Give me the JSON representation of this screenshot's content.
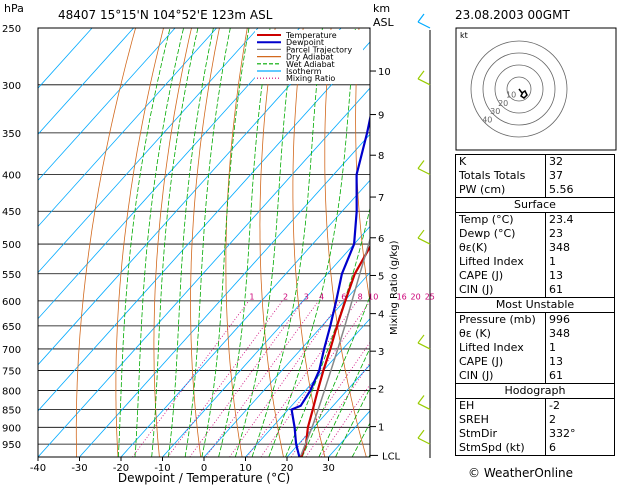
{
  "header": {
    "left_title": "48407  15°15'N  104°52'E  123m  ASL",
    "right_title": "23.08.2003  00GMT",
    "y_unit": "hPa",
    "km_unit": "km",
    "asl_unit": "ASL"
  },
  "chart_data": {
    "type": "line",
    "title": "",
    "xlabel": "Dewpoint / Temperature (°C)",
    "ylabel": "hPa",
    "xlim": [
      -40,
      40
    ],
    "x_ticks": [
      -40,
      -30,
      -20,
      -10,
      0,
      10,
      20,
      30
    ],
    "pressure_levels": [
      250,
      300,
      350,
      400,
      450,
      500,
      550,
      600,
      650,
      700,
      750,
      800,
      850,
      900,
      950
    ],
    "p_range": [
      250,
      990
    ],
    "y_scale": "log",
    "skew": true,
    "km_ticks": [
      {
        "km": "1",
        "p": 898
      },
      {
        "km": "2",
        "p": 795
      },
      {
        "km": "3",
        "p": 705
      },
      {
        "km": "4",
        "p": 625
      },
      {
        "km": "5",
        "p": 553
      },
      {
        "km": "6",
        "p": 490
      },
      {
        "km": "7",
        "p": 430
      },
      {
        "km": "8",
        "p": 376
      },
      {
        "km": "9",
        "p": 330
      },
      {
        "km": "10",
        "p": 287
      }
    ],
    "lcl_label": "LCL",
    "lcl_p": 985,
    "mixing_ratio_label": "Mixing Ratio  (g/kg)",
    "mixing_ratio_values": [
      "1",
      "2",
      "3",
      "4",
      "6",
      "8",
      "10",
      "16",
      "20",
      "25"
    ],
    "legend": [
      "Temperature",
      "Dewpoint",
      "Parcel Trajectory",
      "Dry Adiabat",
      "Wet Adiabat",
      "Isotherm",
      "Mixing Ratio"
    ],
    "legend_placement": "top-left",
    "series": [
      {
        "name": "Temperature",
        "color": "#cc0000",
        "points": [
          [
            990,
            23.4
          ],
          [
            950,
            21.8
          ],
          [
            900,
            18.6
          ],
          [
            850,
            15.9
          ],
          [
            800,
            13.0
          ],
          [
            750,
            10.0
          ],
          [
            700,
            7.0
          ],
          [
            650,
            3.6
          ],
          [
            600,
            0.2
          ],
          [
            550,
            -3.4
          ],
          [
            500,
            -5.8
          ],
          [
            450,
            -10.2
          ],
          [
            400,
            -16.0
          ],
          [
            350,
            -22.4
          ],
          [
            300,
            -30.6
          ],
          [
            270,
            -37.0
          ],
          [
            250,
            -42.0
          ]
        ]
      },
      {
        "name": "Dewpoint",
        "color": "#0000cc",
        "points": [
          [
            990,
            23.0
          ],
          [
            950,
            19.4
          ],
          [
            900,
            15.4
          ],
          [
            850,
            10.8
          ],
          [
            840,
            12.2
          ],
          [
            800,
            11.2
          ],
          [
            750,
            9.0
          ],
          [
            700,
            5.5
          ],
          [
            650,
            2.0
          ],
          [
            600,
            -2.0
          ],
          [
            550,
            -6.5
          ],
          [
            500,
            -10.0
          ],
          [
            450,
            -16.5
          ],
          [
            400,
            -24.5
          ],
          [
            350,
            -31.0
          ],
          [
            300,
            -39.0
          ],
          [
            270,
            -45.0
          ],
          [
            250,
            -53.0
          ]
        ]
      },
      {
        "name": "Parcel Trajectory",
        "color": "#888888",
        "points": [
          [
            985,
            23.0
          ],
          [
            900,
            19.6
          ],
          [
            850,
            17.2
          ],
          [
            800,
            14.6
          ],
          [
            750,
            11.8
          ],
          [
            700,
            8.8
          ],
          [
            650,
            5.5
          ],
          [
            600,
            1.8
          ],
          [
            550,
            -2.2
          ],
          [
            500,
            -6.5
          ],
          [
            450,
            -11.5
          ],
          [
            400,
            -17.2
          ],
          [
            350,
            -24.2
          ],
          [
            300,
            -32.5
          ],
          [
            250,
            -43.0
          ]
        ]
      }
    ]
  },
  "hodograph": {
    "label": "kt",
    "ring_labels": [
      "10",
      "20",
      "30",
      "40"
    ]
  },
  "indices": {
    "top": [
      {
        "label": "K",
        "value": "32"
      },
      {
        "label": "Totals Totals",
        "value": "37"
      },
      {
        "label": "PW (cm)",
        "value": "5.56"
      }
    ],
    "surface": {
      "title": "Surface",
      "rows": [
        {
          "label": "Temp (°C)",
          "value": "23.4"
        },
        {
          "label": "Dewp (°C)",
          "value": "23"
        },
        {
          "label": "θε(K)",
          "value": "348"
        },
        {
          "label": "Lifted Index",
          "value": "1"
        },
        {
          "label": "CAPE (J)",
          "value": "13"
        },
        {
          "label": "CIN (J)",
          "value": "61"
        }
      ]
    },
    "unstable": {
      "title": "Most Unstable",
      "rows": [
        {
          "label": "Pressure (mb)",
          "value": "996"
        },
        {
          "label": "θε (K)",
          "value": "348"
        },
        {
          "label": "Lifted Index",
          "value": "1"
        },
        {
          "label": "CAPE (J)",
          "value": "13"
        },
        {
          "label": "CIN (J)",
          "value": "61"
        }
      ]
    },
    "hodograph": {
      "title": "Hodograph",
      "rows": [
        {
          "label": "EH",
          "value": "-2"
        },
        {
          "label": "SREH",
          "value": "2"
        },
        {
          "label": "StmDir",
          "value": "332°"
        },
        {
          "label": "StmSpd (kt)",
          "value": "6"
        }
      ]
    }
  },
  "copyright": "© WeatherOnline",
  "colors": {
    "temperature": "#cc0000",
    "dewpoint": "#0000cc",
    "parcel": "#888888",
    "dry_adiabat": "#d2691e",
    "wet_adiabat": "#00aa00",
    "isotherm": "#00aaff",
    "mixing_ratio": "#cc0077",
    "wind_barb": "#99cc00"
  }
}
